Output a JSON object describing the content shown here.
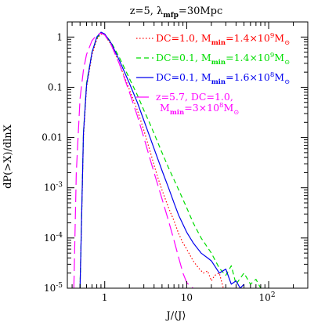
{
  "chart_data": {
    "type": "line",
    "title": "z=5, λ_mfp=30Mpc",
    "title_parts": {
      "prefix": "z=5, λ",
      "sub": "mfp",
      "suffix": "=30Mpc"
    },
    "xlabel": "J/⟨J⟩",
    "ylabel": "dP(>X)/dlnX",
    "x_scale": "log",
    "y_scale": "log",
    "xlim": [
      0.35,
      300
    ],
    "ylim": [
      1e-05,
      2
    ],
    "grid": false,
    "legend_position": "top-right",
    "x_ticks": [
      {
        "value": 1,
        "label": "1"
      },
      {
        "value": 10,
        "label": "10"
      },
      {
        "value": 100,
        "label": "10",
        "sup": "2"
      }
    ],
    "y_ticks": [
      {
        "value": 1,
        "label": "1"
      },
      {
        "value": 0.1,
        "label": "0.1"
      },
      {
        "value": 0.01,
        "label": "0.01"
      },
      {
        "value": 0.001,
        "label": "10",
        "sup": "-3"
      },
      {
        "value": 0.0001,
        "label": "10",
        "sup": "-4"
      },
      {
        "value": 1e-05,
        "label": "10",
        "sup": "-5"
      }
    ],
    "series": [
      {
        "name": "DC=1.0, M_min=1.4×10^9 M_⊙",
        "legend": {
          "a": "DC=1.0, M",
          "sub1": "min",
          "b": "=1.4×10",
          "sup": "9",
          "c": "M",
          "sub2": "⊙"
        },
        "color": "#ff0000",
        "dash": "1.5,2.5",
        "x": [
          0.5,
          0.55,
          0.6,
          0.7,
          0.8,
          0.9,
          1.0,
          1.2,
          1.5,
          2.0,
          2.5,
          3.0,
          3.5,
          4.0,
          4.5,
          5.0,
          6.0,
          7.0,
          8.0,
          9.0,
          10.0,
          12.0,
          14.0,
          16.0,
          18.0,
          20.0,
          22.0,
          25.0,
          28.0
        ],
        "y": [
          1e-05,
          0.01,
          0.1,
          0.45,
          0.9,
          1.15,
          1.1,
          0.7,
          0.3,
          0.09,
          0.035,
          0.014,
          0.006,
          0.0028,
          0.0015,
          0.0009,
          0.0004,
          0.00022,
          0.00012,
          8e-05,
          6e-05,
          3.5e-05,
          2.5e-05,
          2e-05,
          2.2e-05,
          1.4e-05,
          1.8e-05,
          2e-05,
          1e-05
        ]
      },
      {
        "name": "DC=0.1, M_min=1.4×10^9 M_⊙",
        "legend": {
          "a": "DC=0.1, M",
          "sub1": "min",
          "b": "=1.4×10",
          "sup": "9",
          "c": "M",
          "sub2": "⊙"
        },
        "color": "#00dd00",
        "dash": "6,4",
        "x": [
          0.5,
          0.55,
          0.6,
          0.7,
          0.8,
          0.9,
          1.0,
          1.2,
          1.5,
          2.0,
          2.5,
          3.0,
          3.5,
          4.0,
          5.0,
          6.0,
          8.0,
          10.0,
          12.0,
          15.0,
          20.0,
          25.0,
          30.0,
          35.0,
          40.0,
          50.0,
          60.0,
          70.0,
          80.0
        ],
        "y": [
          1e-05,
          0.012,
          0.12,
          0.5,
          0.95,
          1.2,
          1.15,
          0.78,
          0.4,
          0.15,
          0.07,
          0.035,
          0.02,
          0.012,
          0.005,
          0.0025,
          0.0009,
          0.0004,
          0.0002,
          0.0001,
          5e-05,
          2.5e-05,
          1.8e-05,
          2.8e-05,
          1.2e-05,
          2e-05,
          1.2e-05,
          1.5e-05,
          1e-05
        ]
      },
      {
        "name": "DC=0.1, M_min=1.6×10^8 M_⊙",
        "legend": {
          "a": "DC=0.1, M",
          "sub1": "min",
          "b": "=1.6×10",
          "sup": "8",
          "c": "M",
          "sub2": "⊙"
        },
        "color": "#0000ee",
        "dash": "",
        "x": [
          0.5,
          0.55,
          0.6,
          0.7,
          0.8,
          0.9,
          1.0,
          1.2,
          1.5,
          2.0,
          2.5,
          3.0,
          3.5,
          4.0,
          5.0,
          6.0,
          7.0,
          8.0,
          10.0,
          12.0,
          15.0,
          18.0,
          20.0,
          25.0,
          30.0,
          35.0,
          40.0,
          45.0,
          50.0
        ],
        "y": [
          1e-05,
          0.012,
          0.11,
          0.5,
          1.0,
          1.25,
          1.15,
          0.75,
          0.35,
          0.12,
          0.05,
          0.022,
          0.011,
          0.006,
          0.0022,
          0.001,
          0.0005,
          0.00028,
          0.00013,
          8e-05,
          5e-05,
          4e-05,
          3.5e-05,
          2e-05,
          2.4e-05,
          1.2e-05,
          1.4e-05,
          1e-05,
          1.2e-05
        ]
      },
      {
        "name": "z=5.7, DC=1.0, M_min=3×10^8 M_⊙",
        "legend": {
          "a": "z=5.7, DC=1.0,",
          "a2": "M",
          "sub1": "min",
          "b": "=3×10",
          "sup": "8",
          "c": "M",
          "sub2": "⊙"
        },
        "color": "#ff00ff",
        "dash": "16,6",
        "x": [
          0.42,
          0.45,
          0.5,
          0.55,
          0.6,
          0.7,
          0.8,
          0.9,
          1.0,
          1.2,
          1.5,
          2.0,
          2.5,
          3.0,
          3.5,
          4.0,
          5.0,
          6.0,
          7.0,
          8.0,
          9.0,
          10.0,
          11.0,
          12.0
        ],
        "y": [
          1e-05,
          0.002,
          0.06,
          0.22,
          0.45,
          0.85,
          1.1,
          1.2,
          1.1,
          0.7,
          0.3,
          0.08,
          0.027,
          0.01,
          0.0042,
          0.002,
          0.0006,
          0.00022,
          9e-05,
          4e-05,
          2e-05,
          1.3e-05,
          1.1e-05,
          1e-05
        ]
      }
    ]
  }
}
